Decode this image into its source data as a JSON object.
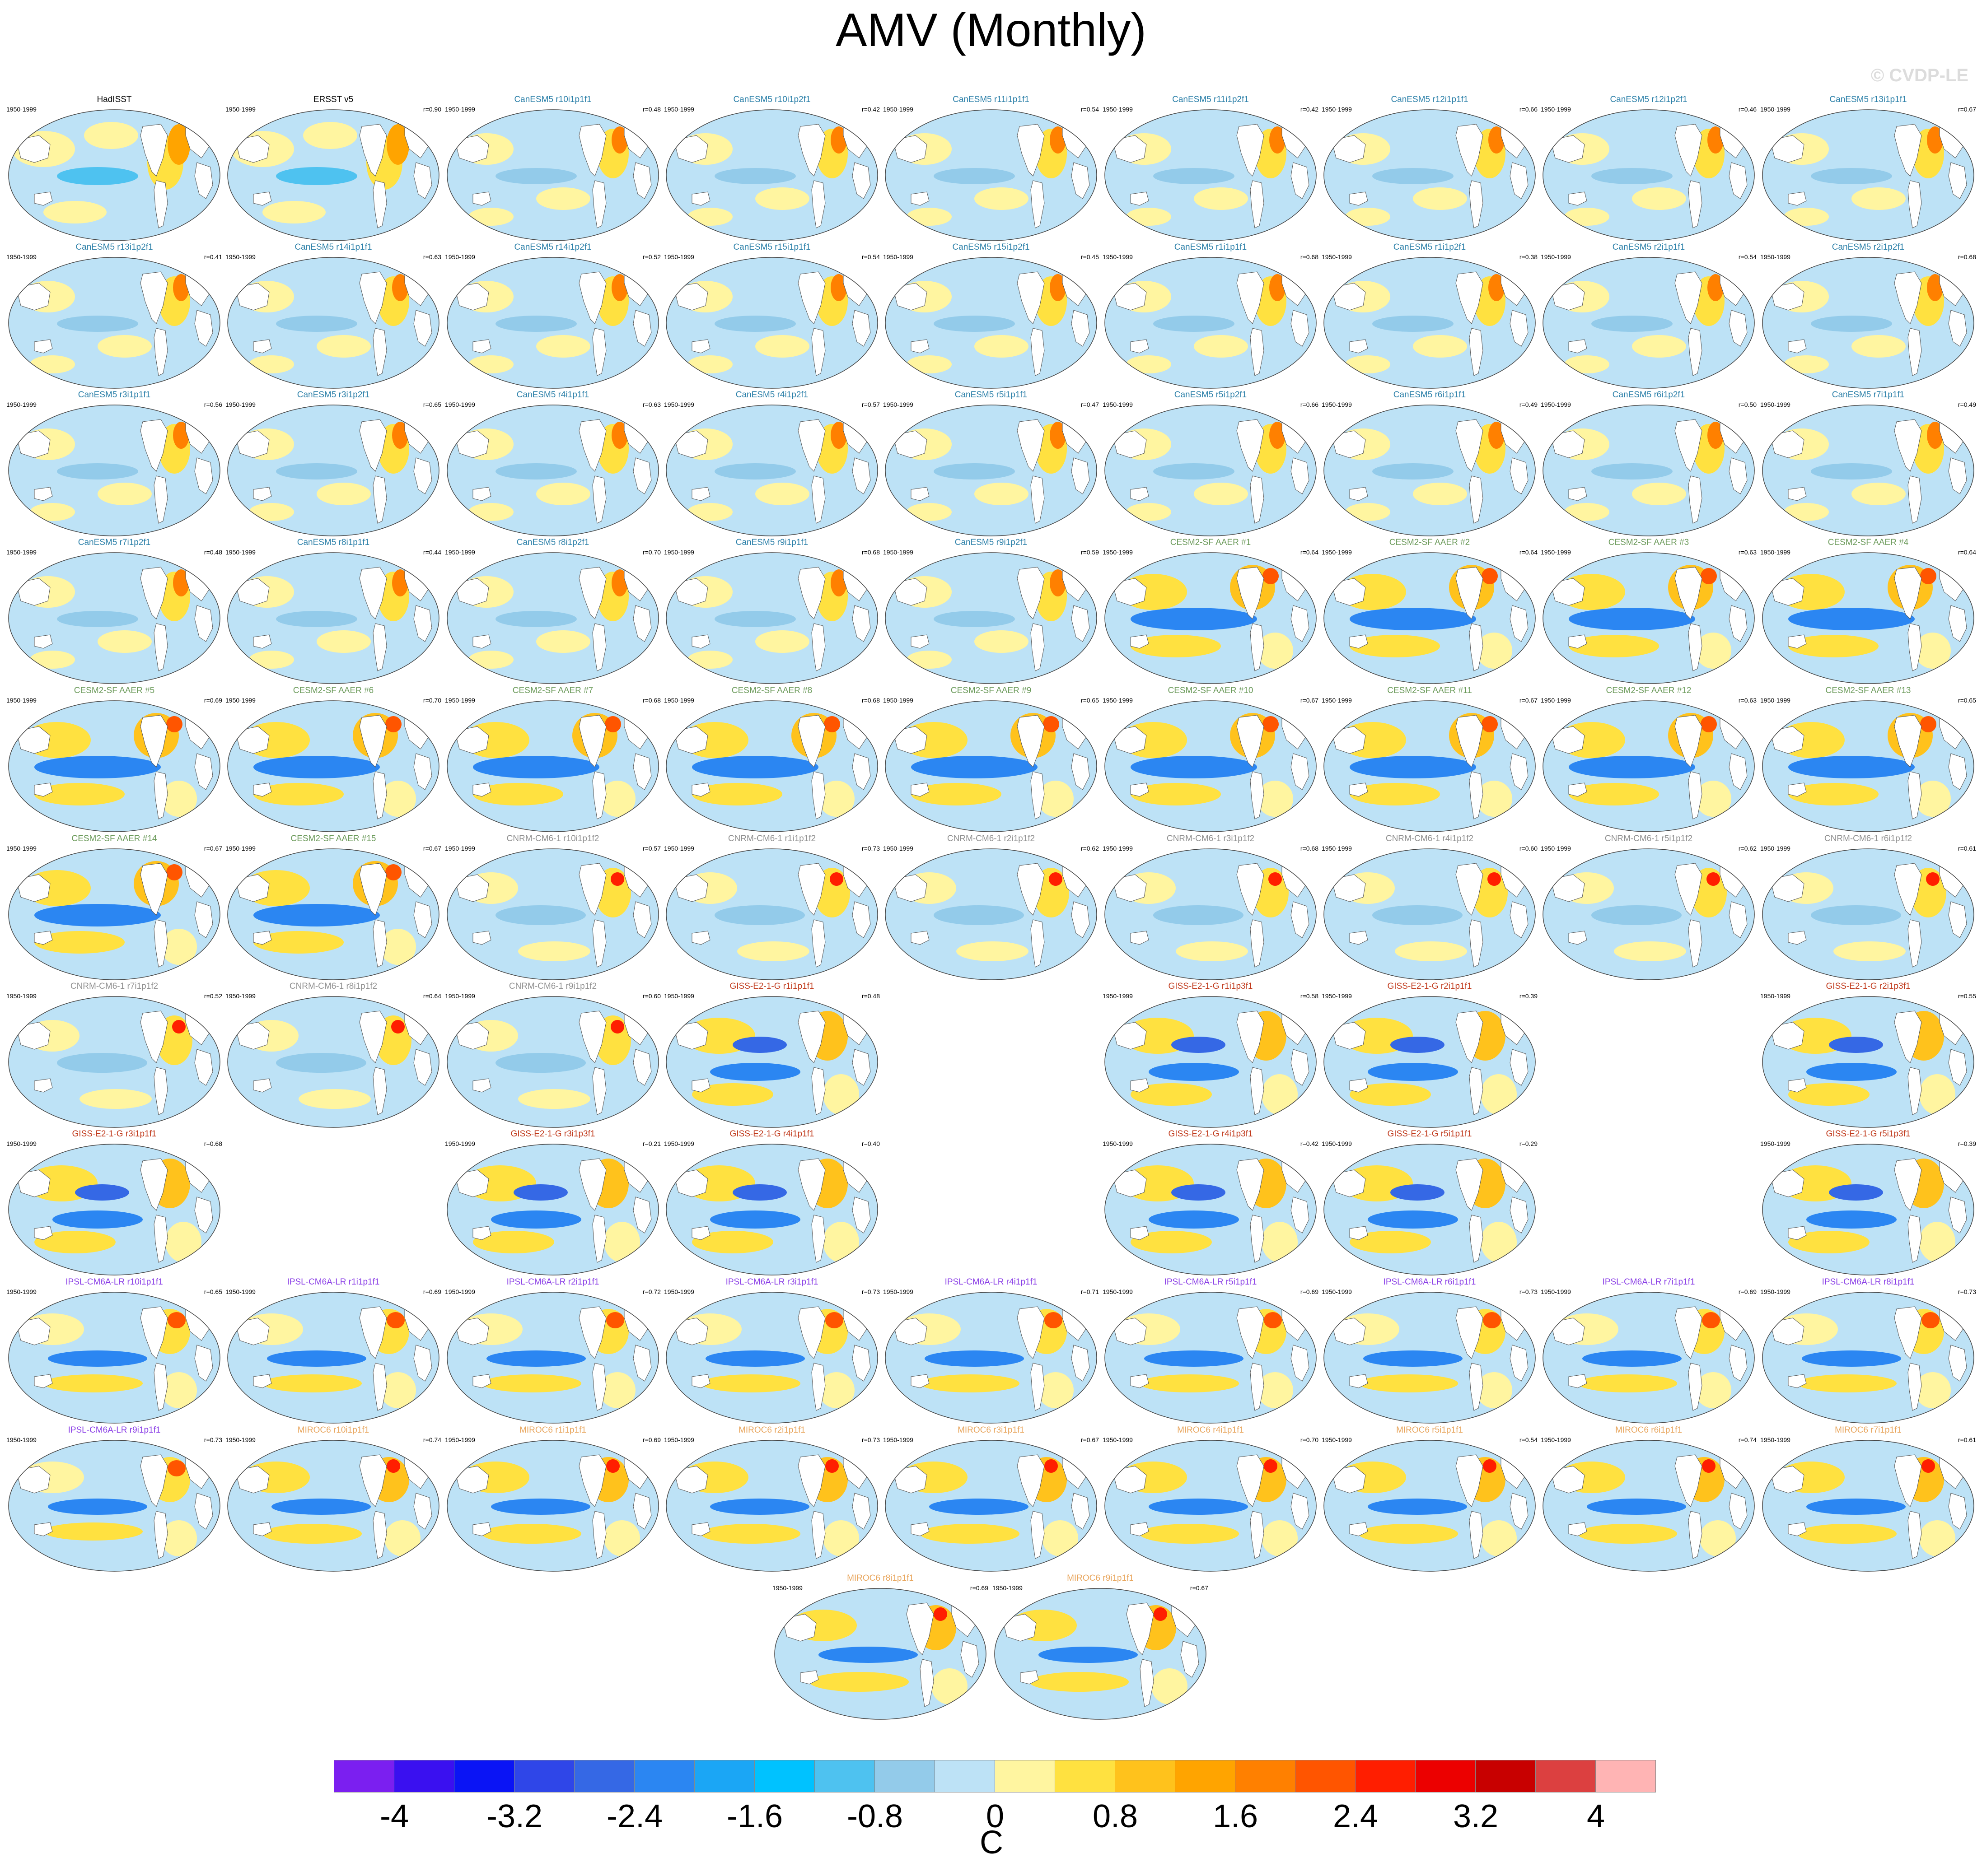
{
  "title": "AMV (Monthly)",
  "copyright": "© CVDP-LE",
  "units": "C",
  "colorbar": {
    "tick_labels": [
      "-4",
      "-3.2",
      "-2.4",
      "-1.6",
      "-0.8",
      "0",
      "0.8",
      "1.6",
      "2.4",
      "3.2",
      "4"
    ],
    "colors": [
      "#7b1ff0",
      "#3a10f0",
      "#0a14f5",
      "#2f46e8",
      "#3568e5",
      "#2b86f2",
      "#1ba6f5",
      "#00c2ff",
      "#4ec2f0",
      "#93cbea",
      "#bde2f6",
      "#fff5a0",
      "#ffe140",
      "#ffc21c",
      "#ffa400",
      "#ff8000",
      "#ff5500",
      "#ff1e00",
      "#ec0000",
      "#c80000",
      "#dc4040",
      "#ffb4b4"
    ]
  },
  "panel_colors": {
    "obs": "#000000",
    "CanESM5": "#2a7fa8",
    "CESM2": "#6b9a5a",
    "CNRM": "#909090",
    "GISS": "#c0391b",
    "IPSL": "#8a3ee6",
    "MIROC": "#e8a55c"
  },
  "rows": [
    [
      {
        "title": "HadISST",
        "group": "obs",
        "years": "1950-1999",
        "r": "",
        "pattern": "obs"
      },
      {
        "title": "ERSST v5",
        "group": "obs",
        "years": "1950-1999",
        "r": "r=0.90",
        "pattern": "obs"
      },
      {
        "title": "CanESM5 r10i1p1f1",
        "group": "CanESM5",
        "years": "1950-1999",
        "r": "r=0.48",
        "pattern": "can"
      },
      {
        "title": "CanESM5 r10i1p2f1",
        "group": "CanESM5",
        "years": "1950-1999",
        "r": "r=0.42",
        "pattern": "can"
      },
      {
        "title": "CanESM5 r11i1p1f1",
        "group": "CanESM5",
        "years": "1950-1999",
        "r": "r=0.54",
        "pattern": "can"
      },
      {
        "title": "CanESM5 r11i1p2f1",
        "group": "CanESM5",
        "years": "1950-1999",
        "r": "r=0.42",
        "pattern": "can"
      },
      {
        "title": "CanESM5 r12i1p1f1",
        "group": "CanESM5",
        "years": "1950-1999",
        "r": "r=0.66",
        "pattern": "can"
      },
      {
        "title": "CanESM5 r12i1p2f1",
        "group": "CanESM5",
        "years": "1950-1999",
        "r": "r=0.46",
        "pattern": "can"
      },
      {
        "title": "CanESM5 r13i1p1f1",
        "group": "CanESM5",
        "years": "1950-1999",
        "r": "r=0.67",
        "pattern": "can"
      }
    ],
    [
      {
        "title": "CanESM5 r13i1p2f1",
        "group": "CanESM5",
        "years": "1950-1999",
        "r": "r=0.41",
        "pattern": "can"
      },
      {
        "title": "CanESM5 r14i1p1f1",
        "group": "CanESM5",
        "years": "1950-1999",
        "r": "r=0.63",
        "pattern": "can"
      },
      {
        "title": "CanESM5 r14i1p2f1",
        "group": "CanESM5",
        "years": "1950-1999",
        "r": "r=0.52",
        "pattern": "can"
      },
      {
        "title": "CanESM5 r15i1p1f1",
        "group": "CanESM5",
        "years": "1950-1999",
        "r": "r=0.54",
        "pattern": "can"
      },
      {
        "title": "CanESM5 r15i1p2f1",
        "group": "CanESM5",
        "years": "1950-1999",
        "r": "r=0.45",
        "pattern": "can"
      },
      {
        "title": "CanESM5 r1i1p1f1",
        "group": "CanESM5",
        "years": "1950-1999",
        "r": "r=0.68",
        "pattern": "can"
      },
      {
        "title": "CanESM5 r1i1p2f1",
        "group": "CanESM5",
        "years": "1950-1999",
        "r": "r=0.38",
        "pattern": "can"
      },
      {
        "title": "CanESM5 r2i1p1f1",
        "group": "CanESM5",
        "years": "1950-1999",
        "r": "r=0.54",
        "pattern": "can"
      },
      {
        "title": "CanESM5 r2i1p2f1",
        "group": "CanESM5",
        "years": "1950-1999",
        "r": "r=0.68",
        "pattern": "can"
      }
    ],
    [
      {
        "title": "CanESM5 r3i1p1f1",
        "group": "CanESM5",
        "years": "1950-1999",
        "r": "r=0.56",
        "pattern": "can"
      },
      {
        "title": "CanESM5 r3i1p2f1",
        "group": "CanESM5",
        "years": "1950-1999",
        "r": "r=0.65",
        "pattern": "can"
      },
      {
        "title": "CanESM5 r4i1p1f1",
        "group": "CanESM5",
        "years": "1950-1999",
        "r": "r=0.63",
        "pattern": "can"
      },
      {
        "title": "CanESM5 r4i1p2f1",
        "group": "CanESM5",
        "years": "1950-1999",
        "r": "r=0.57",
        "pattern": "can"
      },
      {
        "title": "CanESM5 r5i1p1f1",
        "group": "CanESM5",
        "years": "1950-1999",
        "r": "r=0.47",
        "pattern": "can"
      },
      {
        "title": "CanESM5 r5i1p2f1",
        "group": "CanESM5",
        "years": "1950-1999",
        "r": "r=0.66",
        "pattern": "can"
      },
      {
        "title": "CanESM5 r6i1p1f1",
        "group": "CanESM5",
        "years": "1950-1999",
        "r": "r=0.49",
        "pattern": "can"
      },
      {
        "title": "CanESM5 r6i1p2f1",
        "group": "CanESM5",
        "years": "1950-1999",
        "r": "r=0.50",
        "pattern": "can"
      },
      {
        "title": "CanESM5 r7i1p1f1",
        "group": "CanESM5",
        "years": "1950-1999",
        "r": "r=0.49",
        "pattern": "can"
      }
    ],
    [
      {
        "title": "CanESM5 r7i1p2f1",
        "group": "CanESM5",
        "years": "1950-1999",
        "r": "r=0.48",
        "pattern": "can"
      },
      {
        "title": "CanESM5 r8i1p1f1",
        "group": "CanESM5",
        "years": "1950-1999",
        "r": "r=0.44",
        "pattern": "can"
      },
      {
        "title": "CanESM5 r8i1p2f1",
        "group": "CanESM5",
        "years": "1950-1999",
        "r": "r=0.70",
        "pattern": "can"
      },
      {
        "title": "CanESM5 r9i1p1f1",
        "group": "CanESM5",
        "years": "1950-1999",
        "r": "r=0.68",
        "pattern": "can"
      },
      {
        "title": "CanESM5 r9i1p2f1",
        "group": "CanESM5",
        "years": "1950-1999",
        "r": "r=0.59",
        "pattern": "can"
      },
      {
        "title": "CESM2-SF AAER #1",
        "group": "CESM2",
        "years": "1950-1999",
        "r": "r=0.64",
        "pattern": "cesm"
      },
      {
        "title": "CESM2-SF AAER #2",
        "group": "CESM2",
        "years": "1950-1999",
        "r": "r=0.64",
        "pattern": "cesm"
      },
      {
        "title": "CESM2-SF AAER #3",
        "group": "CESM2",
        "years": "1950-1999",
        "r": "r=0.63",
        "pattern": "cesm"
      },
      {
        "title": "CESM2-SF AAER #4",
        "group": "CESM2",
        "years": "1950-1999",
        "r": "r=0.64",
        "pattern": "cesm"
      }
    ],
    [
      {
        "title": "CESM2-SF AAER #5",
        "group": "CESM2",
        "years": "1950-1999",
        "r": "r=0.69",
        "pattern": "cesm"
      },
      {
        "title": "CESM2-SF AAER #6",
        "group": "CESM2",
        "years": "1950-1999",
        "r": "r=0.70",
        "pattern": "cesm"
      },
      {
        "title": "CESM2-SF AAER #7",
        "group": "CESM2",
        "years": "1950-1999",
        "r": "r=0.68",
        "pattern": "cesm"
      },
      {
        "title": "CESM2-SF AAER #8",
        "group": "CESM2",
        "years": "1950-1999",
        "r": "r=0.68",
        "pattern": "cesm"
      },
      {
        "title": "CESM2-SF AAER #9",
        "group": "CESM2",
        "years": "1950-1999",
        "r": "r=0.65",
        "pattern": "cesm"
      },
      {
        "title": "CESM2-SF AAER #10",
        "group": "CESM2",
        "years": "1950-1999",
        "r": "r=0.67",
        "pattern": "cesm"
      },
      {
        "title": "CESM2-SF AAER #11",
        "group": "CESM2",
        "years": "1950-1999",
        "r": "r=0.67",
        "pattern": "cesm"
      },
      {
        "title": "CESM2-SF AAER #12",
        "group": "CESM2",
        "years": "1950-1999",
        "r": "r=0.63",
        "pattern": "cesm"
      },
      {
        "title": "CESM2-SF AAER #13",
        "group": "CESM2",
        "years": "1950-1999",
        "r": "r=0.65",
        "pattern": "cesm"
      }
    ],
    [
      {
        "title": "CESM2-SF AAER #14",
        "group": "CESM2",
        "years": "1950-1999",
        "r": "r=0.67",
        "pattern": "cesm"
      },
      {
        "title": "CESM2-SF AAER #15",
        "group": "CESM2",
        "years": "1950-1999",
        "r": "r=0.67",
        "pattern": "cesm"
      },
      {
        "title": "CNRM-CM6-1 r10i1p1f2",
        "group": "CNRM",
        "years": "1950-1999",
        "r": "r=0.57",
        "pattern": "cnrm"
      },
      {
        "title": "CNRM-CM6-1 r1i1p1f2",
        "group": "CNRM",
        "years": "1950-1999",
        "r": "r=0.73",
        "pattern": "cnrm"
      },
      {
        "title": "CNRM-CM6-1 r2i1p1f2",
        "group": "CNRM",
        "years": "1950-1999",
        "r": "r=0.62",
        "pattern": "cnrm"
      },
      {
        "title": "CNRM-CM6-1 r3i1p1f2",
        "group": "CNRM",
        "years": "1950-1999",
        "r": "r=0.68",
        "pattern": "cnrm"
      },
      {
        "title": "CNRM-CM6-1 r4i1p1f2",
        "group": "CNRM",
        "years": "1950-1999",
        "r": "r=0.60",
        "pattern": "cnrm"
      },
      {
        "title": "CNRM-CM6-1 r5i1p1f2",
        "group": "CNRM",
        "years": "1950-1999",
        "r": "r=0.62",
        "pattern": "cnrm"
      },
      {
        "title": "CNRM-CM6-1 r6i1p1f2",
        "group": "CNRM",
        "years": "1950-1999",
        "r": "r=0.61",
        "pattern": "cnrm"
      }
    ],
    [
      {
        "title": "CNRM-CM6-1 r7i1p1f2",
        "group": "CNRM",
        "years": "1950-1999",
        "r": "r=0.52",
        "pattern": "cnrm"
      },
      {
        "title": "CNRM-CM6-1 r8i1p1f2",
        "group": "CNRM",
        "years": "1950-1999",
        "r": "r=0.64",
        "pattern": "cnrm"
      },
      {
        "title": "CNRM-CM6-1 r9i1p1f2",
        "group": "CNRM",
        "years": "1950-1999",
        "r": "r=0.60",
        "pattern": "cnrm"
      },
      {
        "title": "GISS-E2-1-G r1i1p1f1",
        "group": "GISS",
        "years": "1950-1999",
        "r": "r=0.48",
        "pattern": "giss"
      },
      null,
      {
        "title": "GISS-E2-1-G r1i1p3f1",
        "group": "GISS",
        "years": "1950-1999",
        "r": "r=0.58",
        "pattern": "giss"
      },
      {
        "title": "GISS-E2-1-G r2i1p1f1",
        "group": "GISS",
        "years": "1950-1999",
        "r": "r=0.39",
        "pattern": "giss"
      },
      null,
      {
        "title": "GISS-E2-1-G r2i1p3f1",
        "group": "GISS",
        "years": "1950-1999",
        "r": "r=0.55",
        "pattern": "giss"
      }
    ],
    [
      {
        "title": "GISS-E2-1-G r3i1p1f1",
        "group": "GISS",
        "years": "1950-1999",
        "r": "r=0.68",
        "pattern": "giss"
      },
      null,
      {
        "title": "GISS-E2-1-G r3i1p3f1",
        "group": "GISS",
        "years": "1950-1999",
        "r": "r=0.21",
        "pattern": "giss"
      },
      {
        "title": "GISS-E2-1-G r4i1p1f1",
        "group": "GISS",
        "years": "1950-1999",
        "r": "r=0.40",
        "pattern": "giss"
      },
      null,
      {
        "title": "GISS-E2-1-G r4i1p3f1",
        "group": "GISS",
        "years": "1950-1999",
        "r": "r=0.42",
        "pattern": "giss"
      },
      {
        "title": "GISS-E2-1-G r5i1p1f1",
        "group": "GISS",
        "years": "1950-1999",
        "r": "r=0.29",
        "pattern": "giss"
      },
      null,
      {
        "title": "GISS-E2-1-G r5i1p3f1",
        "group": "GISS",
        "years": "1950-1999",
        "r": "r=0.39",
        "pattern": "giss"
      }
    ],
    [
      {
        "title": "IPSL-CM6A-LR r10i1p1f1",
        "group": "IPSL",
        "years": "1950-1999",
        "r": "r=0.65",
        "pattern": "ipsl"
      },
      {
        "title": "IPSL-CM6A-LR r1i1p1f1",
        "group": "IPSL",
        "years": "1950-1999",
        "r": "r=0.69",
        "pattern": "ipsl"
      },
      {
        "title": "IPSL-CM6A-LR r2i1p1f1",
        "group": "IPSL",
        "years": "1950-1999",
        "r": "r=0.72",
        "pattern": "ipsl"
      },
      {
        "title": "IPSL-CM6A-LR r3i1p1f1",
        "group": "IPSL",
        "years": "1950-1999",
        "r": "r=0.73",
        "pattern": "ipsl"
      },
      {
        "title": "IPSL-CM6A-LR r4i1p1f1",
        "group": "IPSL",
        "years": "1950-1999",
        "r": "r=0.71",
        "pattern": "ipsl"
      },
      {
        "title": "IPSL-CM6A-LR r5i1p1f1",
        "group": "IPSL",
        "years": "1950-1999",
        "r": "r=0.69",
        "pattern": "ipsl"
      },
      {
        "title": "IPSL-CM6A-LR r6i1p1f1",
        "group": "IPSL",
        "years": "1950-1999",
        "r": "r=0.73",
        "pattern": "ipsl"
      },
      {
        "title": "IPSL-CM6A-LR r7i1p1f1",
        "group": "IPSL",
        "years": "1950-1999",
        "r": "r=0.69",
        "pattern": "ipsl"
      },
      {
        "title": "IPSL-CM6A-LR r8i1p1f1",
        "group": "IPSL",
        "years": "1950-1999",
        "r": "r=0.73",
        "pattern": "ipsl"
      }
    ],
    [
      {
        "title": "IPSL-CM6A-LR r9i1p1f1",
        "group": "IPSL",
        "years": "1950-1999",
        "r": "r=0.73",
        "pattern": "ipsl"
      },
      {
        "title": "MIROC6 r10i1p1f1",
        "group": "MIROC",
        "years": "1950-1999",
        "r": "r=0.74",
        "pattern": "miroc"
      },
      {
        "title": "MIROC6 r1i1p1f1",
        "group": "MIROC",
        "years": "1950-1999",
        "r": "r=0.69",
        "pattern": "miroc"
      },
      {
        "title": "MIROC6 r2i1p1f1",
        "group": "MIROC",
        "years": "1950-1999",
        "r": "r=0.73",
        "pattern": "miroc"
      },
      {
        "title": "MIROC6 r3i1p1f1",
        "group": "MIROC",
        "years": "1950-1999",
        "r": "r=0.67",
        "pattern": "miroc"
      },
      {
        "title": "MIROC6 r4i1p1f1",
        "group": "MIROC",
        "years": "1950-1999",
        "r": "r=0.70",
        "pattern": "miroc"
      },
      {
        "title": "MIROC6 r5i1p1f1",
        "group": "MIROC",
        "years": "1950-1999",
        "r": "r=0.54",
        "pattern": "miroc"
      },
      {
        "title": "MIROC6 r6i1p1f1",
        "group": "MIROC",
        "years": "1950-1999",
        "r": "r=0.74",
        "pattern": "miroc"
      },
      {
        "title": "MIROC6 r7i1p1f1",
        "group": "MIROC",
        "years": "1950-1999",
        "r": "r=0.61",
        "pattern": "miroc"
      }
    ],
    [
      {
        "title": "MIROC6 r8i1p1f1",
        "group": "MIROC",
        "years": "1950-1999",
        "r": "r=0.69",
        "pattern": "miroc"
      },
      {
        "title": "MIROC6 r9i1p1f1",
        "group": "MIROC",
        "years": "1950-1999",
        "r": "r=0.67",
        "pattern": "miroc"
      }
    ]
  ]
}
